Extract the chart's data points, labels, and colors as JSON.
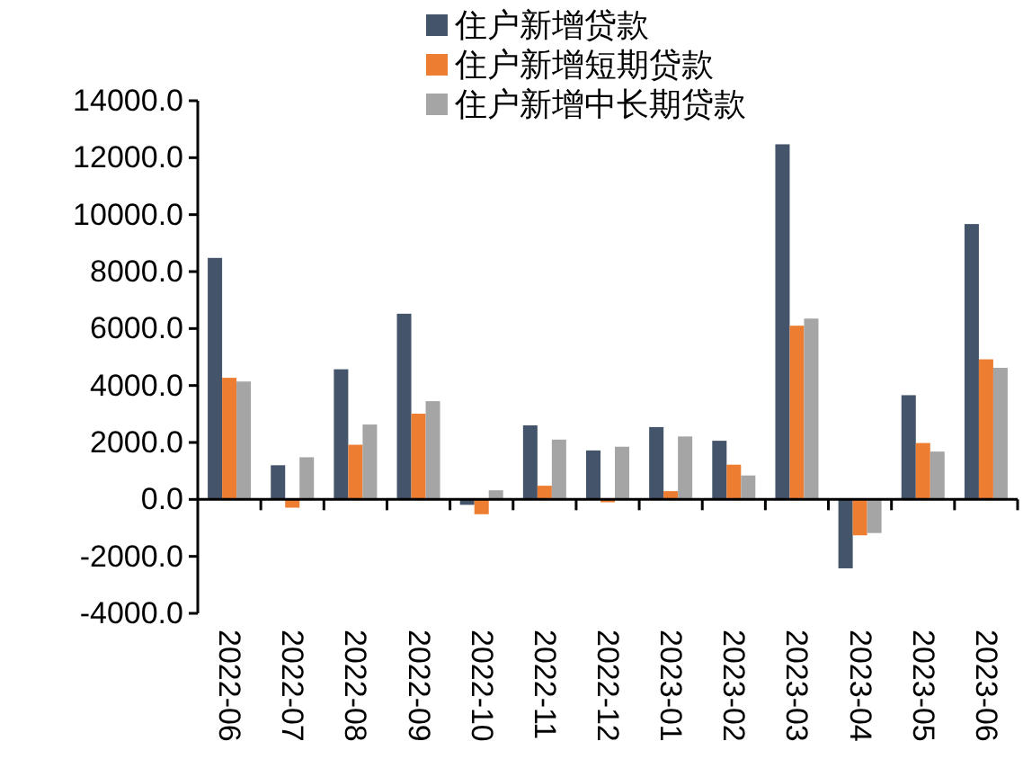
{
  "chart_data": {
    "type": "bar",
    "categories": [
      "2022-06",
      "2022-07",
      "2022-08",
      "2022-09",
      "2022-10",
      "2022-11",
      "2022-12",
      "2023-01",
      "2023-02",
      "2023-03",
      "2023-04",
      "2023-05",
      "2023-06"
    ],
    "series": [
      {
        "name": "住户新增贷款",
        "color": "#44546a",
        "values": [
          8480,
          1200,
          4570,
          6520,
          -190,
          2600,
          1720,
          2540,
          2060,
          12470,
          -2420,
          3660,
          9670
        ]
      },
      {
        "name": "住户新增短期贷款",
        "color": "#ed7d31",
        "values": [
          4270,
          -290,
          1920,
          3010,
          -520,
          480,
          -100,
          290,
          1220,
          6100,
          -1260,
          1980,
          4920
        ]
      },
      {
        "name": "住户新增中长期贷款",
        "color": "#a5a5a5",
        "values": [
          4140,
          1480,
          2630,
          3450,
          320,
          2100,
          1850,
          2210,
          840,
          6350,
          -1180,
          1680,
          4620
        ]
      }
    ],
    "ylim": [
      -4000,
      14000
    ],
    "yticks": [
      {
        "value": -4000,
        "label": "-4000.0"
      },
      {
        "value": -2000,
        "label": "-2000.0"
      },
      {
        "value": 0,
        "label": "0.0"
      },
      {
        "value": 2000,
        "label": "2000.0"
      },
      {
        "value": 4000,
        "label": "4000.0"
      },
      {
        "value": 6000,
        "label": "6000.0"
      },
      {
        "value": 8000,
        "label": "8000.0"
      },
      {
        "value": 10000,
        "label": "10000.0"
      },
      {
        "value": 12000,
        "label": "12000.0"
      },
      {
        "value": 14000,
        "label": "14000.0"
      }
    ],
    "legend": "top"
  }
}
